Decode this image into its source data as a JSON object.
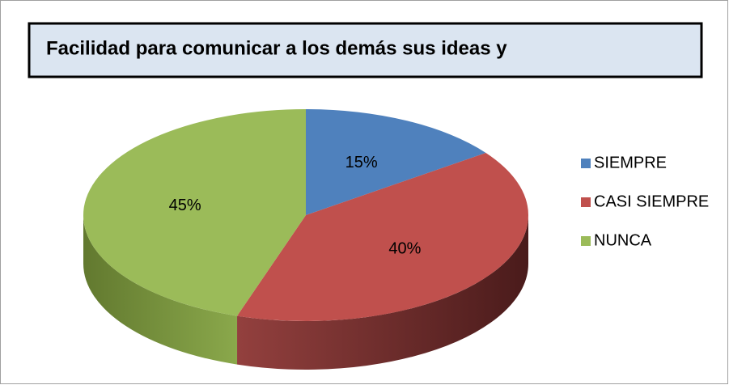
{
  "chart_data": {
    "type": "pie",
    "title": "Facilidad para comunicar a los demás sus ideas y",
    "categories": [
      "SIEMPRE",
      "CASI SIEMPRE",
      "NUNCA"
    ],
    "values": [
      15,
      40,
      45
    ],
    "value_labels": [
      "15%",
      "40%",
      "45%"
    ],
    "colors": [
      "#4f81bd",
      "#c0504d",
      "#9bbb59"
    ],
    "legend": "right"
  }
}
